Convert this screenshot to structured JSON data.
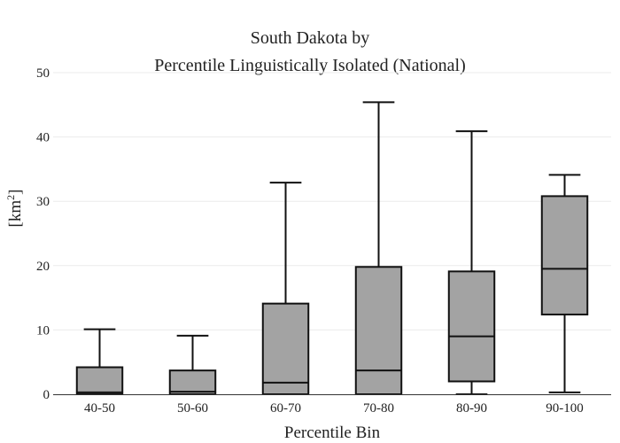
{
  "chart_data": {
    "type": "box",
    "title_line1": "South Dakota  by",
    "title_line2": "Percentile Linguistically Isolated (National)",
    "xlabel": "Percentile Bin",
    "ylabel_base": "[km",
    "ylabel_sup": "2",
    "ylabel_close": "]",
    "ylim": [
      0,
      50
    ],
    "yticks": [
      0,
      10,
      20,
      30,
      40,
      50
    ],
    "grid": true,
    "box_color": "#a3a3a3",
    "line_color": "#111111",
    "categories": [
      "40-50",
      "50-60",
      "60-70",
      "70-80",
      "80-90",
      "90-100"
    ],
    "boxes": [
      {
        "min": 0,
        "q1": 0,
        "median": 0.3,
        "q3": 4.2,
        "max": 10.1
      },
      {
        "min": 0,
        "q1": 0,
        "median": 0.4,
        "q3": 3.7,
        "max": 9.1
      },
      {
        "min": 0,
        "q1": 0,
        "median": 1.8,
        "q3": 14.1,
        "max": 32.9
      },
      {
        "min": 0,
        "q1": 0,
        "median": 3.7,
        "q3": 19.8,
        "max": 45.4
      },
      {
        "min": 0,
        "q1": 2.0,
        "median": 9.0,
        "q3": 19.1,
        "max": 40.9
      },
      {
        "min": 0.3,
        "q1": 12.4,
        "median": 19.5,
        "q3": 30.8,
        "max": 34.1
      }
    ]
  }
}
